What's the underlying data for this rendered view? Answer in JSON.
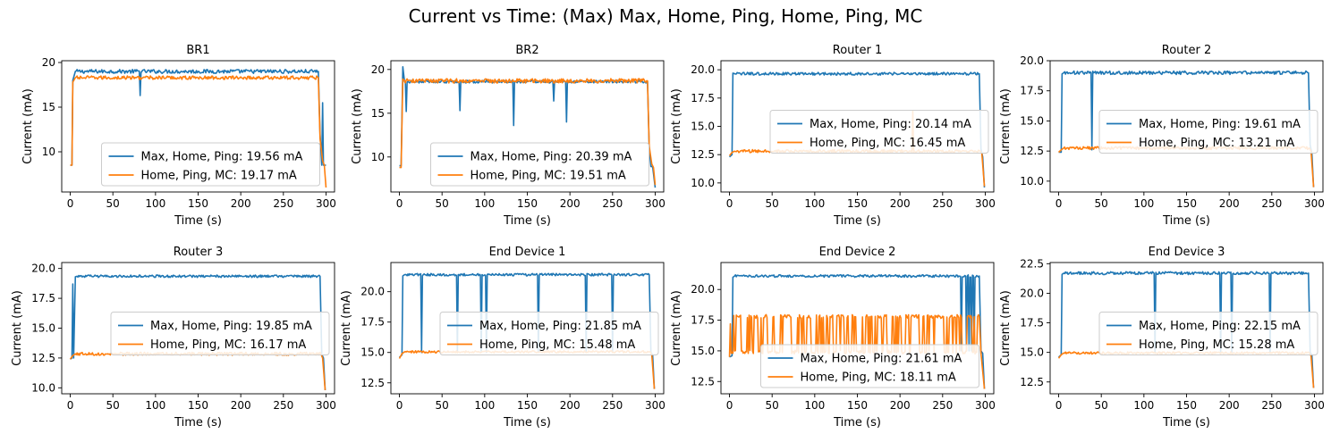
{
  "suptitle": "Current vs Time: (Max) Max, Home, Ping, Home, Ping, MC",
  "colors": {
    "series_a": "#1f77b4",
    "series_b": "#ff7f0e"
  },
  "chart_data": [
    {
      "type": "line",
      "title": "BR1",
      "xlabel": "Time (s)",
      "ylabel": "Current (mA)",
      "xlim": [
        -10,
        310
      ],
      "ylim": [
        5.5,
        20.2
      ],
      "xticks": [
        0,
        50,
        100,
        150,
        200,
        250,
        300
      ],
      "xtick_labels": [
        "0",
        "50",
        "100",
        "150",
        "200",
        "250",
        "300"
      ],
      "yticks": [
        10,
        15,
        20
      ],
      "ytick_labels": [
        "10",
        "15",
        "20"
      ],
      "legend": "lower-center",
      "series": [
        {
          "name": "Max, Home, Ping: 19.56 mA",
          "base": 19.0,
          "noise": 0.22,
          "start": [
            [
              0,
              8.5
            ],
            [
              2,
              8.5
            ],
            [
              3,
              18.0
            ],
            [
              6,
              19.0
            ]
          ],
          "end": [
            [
              291,
              19.0
            ],
            [
              293,
              12.0
            ],
            [
              295,
              8.5
            ],
            [
              296,
              15.5
            ],
            [
              297,
              8.5
            ],
            [
              300,
              8.5
            ]
          ],
          "spikes": [
            [
              82,
              16.3
            ]
          ]
        },
        {
          "name": "Home, Ping, MC: 19.17 mA",
          "base": 18.3,
          "noise": 0.2,
          "start": [
            [
              0,
              8.5
            ],
            [
              2,
              8.5
            ],
            [
              3,
              17.8
            ],
            [
              6,
              18.3
            ]
          ],
          "end": [
            [
              291,
              18.3
            ],
            [
              293,
              11.5
            ],
            [
              296,
              9.0
            ],
            [
              298,
              8.5
            ],
            [
              300,
              6.0
            ]
          ],
          "spikes": []
        }
      ]
    },
    {
      "type": "line",
      "title": "BR2",
      "xlabel": "Time (s)",
      "ylabel": "Current (mA)",
      "xlim": [
        -10,
        310
      ],
      "ylim": [
        6.0,
        21.0
      ],
      "xticks": [
        0,
        50,
        100,
        150,
        200,
        250,
        300
      ],
      "xtick_labels": [
        "0",
        "50",
        "100",
        "150",
        "200",
        "250",
        "300"
      ],
      "yticks": [
        10,
        15,
        20
      ],
      "ytick_labels": [
        "10",
        "15",
        "20"
      ],
      "legend": "lower-center",
      "series": [
        {
          "name": "Max, Home, Ping: 20.39 mA",
          "base": 18.6,
          "noise": 0.15,
          "start": [
            [
              0,
              9.0
            ],
            [
              2,
              9.0
            ],
            [
              4,
              20.3
            ],
            [
              6,
              18.6
            ]
          ],
          "end": [
            [
              291,
              18.6
            ],
            [
              293,
              11.0
            ],
            [
              295,
              8.9
            ],
            [
              297,
              8.9
            ],
            [
              300,
              6.5
            ]
          ],
          "spikes": [
            [
              8,
              15.2
            ],
            [
              71,
              15.3
            ],
            [
              134,
              13.6
            ],
            [
              181,
              16.4
            ],
            [
              196,
              14.0
            ]
          ]
        },
        {
          "name": "Home, Ping, MC: 19.51 mA",
          "base": 18.7,
          "noise": 0.25,
          "start": [
            [
              0,
              8.8
            ],
            [
              2,
              8.8
            ],
            [
              4,
              18.9
            ],
            [
              6,
              18.7
            ]
          ],
          "end": [
            [
              291,
              18.7
            ],
            [
              293,
              11.2
            ],
            [
              296,
              9.2
            ],
            [
              298,
              8.8
            ],
            [
              300,
              6.8
            ]
          ],
          "spikes": []
        }
      ]
    },
    {
      "type": "line",
      "title": "Router 1",
      "xlabel": "Time (s)",
      "ylabel": "Current (mA)",
      "xlim": [
        -10,
        310
      ],
      "ylim": [
        9.2,
        20.8
      ],
      "xticks": [
        0,
        50,
        100,
        150,
        200,
        250,
        300
      ],
      "xtick_labels": [
        "0",
        "50",
        "100",
        "150",
        "200",
        "250",
        "300"
      ],
      "yticks": [
        10.0,
        12.5,
        15.0,
        17.5,
        20.0
      ],
      "ytick_labels": [
        "10.0",
        "12.5",
        "15.0",
        "17.5",
        "20.0"
      ],
      "legend": "center-right",
      "series": [
        {
          "name": "Max, Home, Ping: 20.14 mA",
          "base": 19.65,
          "noise": 0.12,
          "start": [
            [
              0,
              12.3
            ],
            [
              3,
              12.5
            ],
            [
              4,
              19.7
            ],
            [
              6,
              19.65
            ]
          ],
          "end": [
            [
              293,
              19.65
            ],
            [
              295,
              13.0
            ],
            [
              297,
              12.3
            ],
            [
              299,
              9.6
            ]
          ],
          "spikes": []
        },
        {
          "name": "Home, Ping, MC: 16.45 mA",
          "base": 12.8,
          "noise": 0.14,
          "start": [
            [
              0,
              12.4
            ],
            [
              3,
              12.7
            ],
            [
              6,
              12.8
            ]
          ],
          "end": [
            [
              294,
              12.8
            ],
            [
              296,
              12.6
            ],
            [
              299,
              9.7
            ]
          ],
          "spikes": [
            [
              215,
              16.4
            ]
          ]
        }
      ]
    },
    {
      "type": "line",
      "title": "Router 2",
      "xlabel": "Time (s)",
      "ylabel": "Current (mA)",
      "xlim": [
        -10,
        310
      ],
      "ylim": [
        9.1,
        20.0
      ],
      "xticks": [
        0,
        50,
        100,
        150,
        200,
        250,
        300
      ],
      "xtick_labels": [
        "0",
        "50",
        "100",
        "150",
        "200",
        "250",
        "300"
      ],
      "yticks": [
        10.0,
        12.5,
        15.0,
        17.5,
        20.0
      ],
      "ytick_labels": [
        "10.0",
        "12.5",
        "15.0",
        "17.5",
        "20.0"
      ],
      "legend": "center-right",
      "series": [
        {
          "name": "Max, Home, Ping: 19.61 mA",
          "base": 19.0,
          "noise": 0.14,
          "start": [
            [
              0,
              12.4
            ],
            [
              3,
              12.4
            ],
            [
              4,
              18.9
            ],
            [
              6,
              19.0
            ]
          ],
          "end": [
            [
              293,
              19.0
            ],
            [
              295,
              13.0
            ],
            [
              297,
              12.3
            ],
            [
              299,
              9.5
            ]
          ],
          "spikes": [
            [
              39,
              12.6
            ]
          ]
        },
        {
          "name": "Home, Ping, MC: 13.21 mA",
          "base": 12.75,
          "noise": 0.12,
          "start": [
            [
              0,
              12.4
            ],
            [
              3,
              12.6
            ],
            [
              6,
              12.75
            ]
          ],
          "end": [
            [
              294,
              12.75
            ],
            [
              296,
              12.5
            ],
            [
              299,
              9.5
            ]
          ],
          "spikes": []
        }
      ]
    },
    {
      "type": "line",
      "title": "Router 3",
      "xlabel": "Time (s)",
      "ylabel": "Current (mA)",
      "xlim": [
        -10,
        310
      ],
      "ylim": [
        9.5,
        20.5
      ],
      "xticks": [
        0,
        50,
        100,
        150,
        200,
        250,
        300
      ],
      "xtick_labels": [
        "0",
        "50",
        "100",
        "150",
        "200",
        "250",
        "300"
      ],
      "yticks": [
        10.0,
        12.5,
        15.0,
        17.5,
        20.0
      ],
      "ytick_labels": [
        "10.0",
        "12.5",
        "15.0",
        "17.5",
        "20.0"
      ],
      "legend": "center-right",
      "series": [
        {
          "name": "Max, Home, Ping: 19.85 mA",
          "base": 19.35,
          "noise": 0.1,
          "start": [
            [
              0,
              12.4
            ],
            [
              2,
              12.5
            ],
            [
              3,
              18.7
            ],
            [
              4,
              12.5
            ],
            [
              6,
              19.3
            ],
            [
              8,
              19.35
            ]
          ],
          "end": [
            [
              293,
              19.35
            ],
            [
              295,
              12.8
            ],
            [
              297,
              12.5
            ],
            [
              299,
              9.8
            ]
          ],
          "spikes": []
        },
        {
          "name": "Home, Ping, MC: 16.17 mA",
          "base": 12.85,
          "noise": 0.13,
          "start": [
            [
              0,
              12.4
            ],
            [
              3,
              12.7
            ],
            [
              6,
              12.85
            ]
          ],
          "end": [
            [
              294,
              12.85
            ],
            [
              296,
              12.5
            ],
            [
              299,
              9.8
            ]
          ],
          "spikes": []
        }
      ]
    },
    {
      "type": "line",
      "title": "End Device 1",
      "xlabel": "Time (s)",
      "ylabel": "Current (mA)",
      "xlim": [
        -10,
        310
      ],
      "ylim": [
        11.6,
        22.4
      ],
      "xticks": [
        0,
        50,
        100,
        150,
        200,
        250,
        300
      ],
      "xtick_labels": [
        "0",
        "50",
        "100",
        "150",
        "200",
        "250",
        "300"
      ],
      "yticks": [
        12.5,
        15.0,
        17.5,
        20.0
      ],
      "ytick_labels": [
        "12.5",
        "15.0",
        "17.5",
        "20.0"
      ],
      "legend": "center-right",
      "series": [
        {
          "name": "Max, Home, Ping: 21.85 mA",
          "base": 21.4,
          "noise": 0.1,
          "start": [
            [
              0,
              14.6
            ],
            [
              3,
              14.8
            ],
            [
              4,
              21.3
            ],
            [
              6,
              21.4
            ]
          ],
          "end": [
            [
              293,
              21.4
            ],
            [
              295,
              15.0
            ],
            [
              297,
              14.8
            ],
            [
              299,
              12.0
            ]
          ],
          "spikes": [
            [
              26,
              15.0
            ],
            [
              68,
              15.0
            ],
            [
              96,
              15.0
            ],
            [
              102,
              15.0
            ],
            [
              163,
              15.0
            ],
            [
              219,
              15.0
            ],
            [
              250,
              15.0
            ]
          ]
        },
        {
          "name": "Home, Ping, MC: 15.48 mA",
          "base": 15.05,
          "noise": 0.09,
          "start": [
            [
              0,
              14.5
            ],
            [
              3,
              14.9
            ],
            [
              6,
              15.05
            ]
          ],
          "end": [
            [
              294,
              15.05
            ],
            [
              296,
              14.8
            ],
            [
              299,
              12.0
            ]
          ],
          "spikes": []
        }
      ]
    },
    {
      "type": "line",
      "title": "End Device 2",
      "xlabel": "Time (s)",
      "ylabel": "Current (mA)",
      "xlim": [
        -10,
        310
      ],
      "ylim": [
        11.5,
        22.2
      ],
      "xticks": [
        0,
        50,
        100,
        150,
        200,
        250,
        300
      ],
      "xtick_labels": [
        "0",
        "50",
        "100",
        "150",
        "200",
        "250",
        "300"
      ],
      "yticks": [
        12.5,
        15.0,
        17.5,
        20.0
      ],
      "ytick_labels": [
        "12.5",
        "15.0",
        "17.5",
        "20.0"
      ],
      "legend": "lower-center",
      "series": [
        {
          "name": "Max, Home, Ping: 21.61 mA",
          "base": 21.1,
          "noise": 0.1,
          "start": [
            [
              0,
              14.5
            ],
            [
              3,
              14.6
            ],
            [
              4,
              21.0
            ],
            [
              6,
              21.1
            ]
          ],
          "end": [
            [
              293,
              21.1
            ],
            [
              295,
              15.0
            ],
            [
              297,
              14.8
            ],
            [
              299,
              11.9
            ]
          ],
          "spikes": [
            [
              272,
              15.0
            ],
            [
              278,
              15.0
            ],
            [
              281,
              15.0
            ],
            [
              284,
              15.0
            ],
            [
              287,
              15.0
            ]
          ]
        },
        {
          "name": "Home, Ping, MC: 18.11 mA",
          "base": 17.8,
          "noise": 0.15,
          "toggle_low": 14.9,
          "toggle_range": [
            2,
            292
          ],
          "start": [
            [
              0,
              14.5
            ],
            [
              1,
              17.2
            ],
            [
              2,
              14.8
            ]
          ],
          "end": [
            [
              293,
              17.8
            ],
            [
              295,
              14.8
            ],
            [
              299,
              11.9
            ]
          ],
          "spikes": []
        }
      ]
    },
    {
      "type": "line",
      "title": "End Device 3",
      "xlabel": "Time (s)",
      "ylabel": "Current (mA)",
      "xlim": [
        -10,
        310
      ],
      "ylim": [
        11.5,
        22.6
      ],
      "xticks": [
        0,
        50,
        100,
        150,
        200,
        250,
        300
      ],
      "xtick_labels": [
        "0",
        "50",
        "100",
        "150",
        "200",
        "250",
        "300"
      ],
      "yticks": [
        12.5,
        15.0,
        17.5,
        20.0,
        22.5
      ],
      "ytick_labels": [
        "12.5",
        "15.0",
        "17.5",
        "20.0",
        "22.5"
      ],
      "legend": "center-right",
      "series": [
        {
          "name": "Max, Home, Ping: 22.15 mA",
          "base": 21.7,
          "noise": 0.12,
          "start": [
            [
              0,
              14.6
            ],
            [
              3,
              14.8
            ],
            [
              4,
              21.6
            ],
            [
              6,
              21.7
            ]
          ],
          "end": [
            [
              293,
              21.7
            ],
            [
              295,
              15.0
            ],
            [
              297,
              14.8
            ],
            [
              299,
              12.0
            ]
          ],
          "spikes": [
            [
              113,
              15.0
            ],
            [
              190,
              15.0
            ],
            [
              203,
              15.0
            ],
            [
              248,
              15.0
            ]
          ]
        },
        {
          "name": "Home, Ping, MC: 15.28 mA",
          "base": 14.95,
          "noise": 0.1,
          "start": [
            [
              0,
              14.5
            ],
            [
              3,
              14.8
            ],
            [
              6,
              14.95
            ]
          ],
          "end": [
            [
              294,
              14.95
            ],
            [
              296,
              14.7
            ],
            [
              299,
              12.0
            ]
          ],
          "spikes": []
        }
      ]
    }
  ]
}
